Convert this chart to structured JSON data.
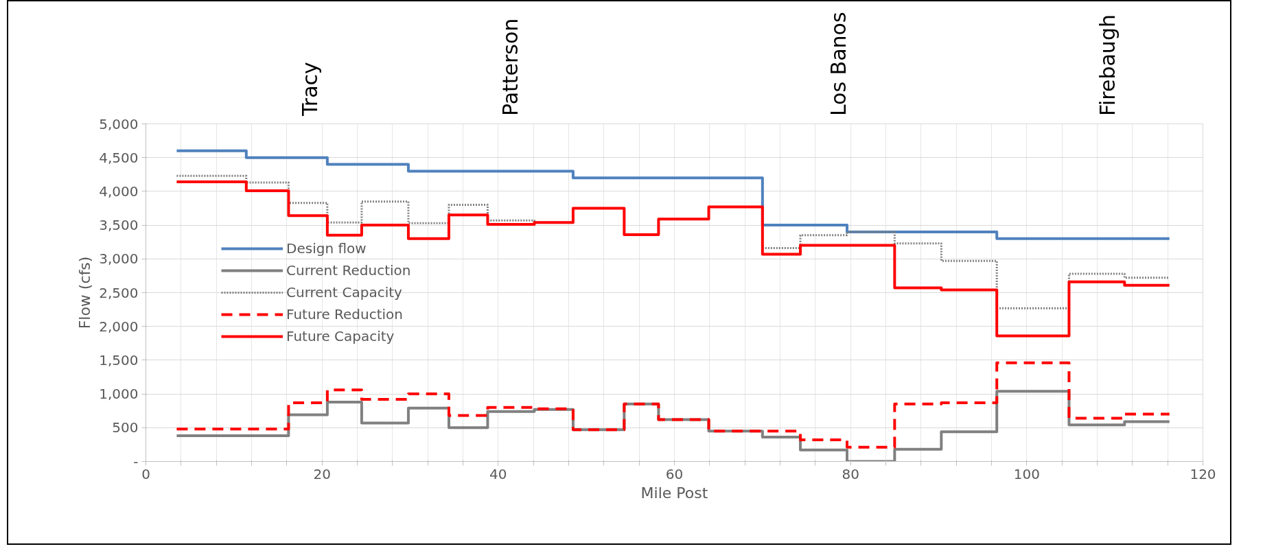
{
  "chart_data": {
    "type": "step",
    "xlabel": "Mile Post",
    "ylabel": "Flow (cfs)",
    "x": [
      3.5,
      11.4,
      16.2,
      20.6,
      24.5,
      29.8,
      34.4,
      38.8,
      44.1,
      48.5,
      54.3,
      58.2,
      63.9,
      70.0,
      74.3,
      79.6,
      85.0,
      90.3,
      96.6,
      104.8,
      111.1,
      116.2
    ],
    "series": [
      {
        "name": "Design flow",
        "color": "#4f81bd",
        "line_style": "solid",
        "values": [
          4600,
          4500,
          4500,
          4400,
          4400,
          4300,
          4300,
          4300,
          4300,
          4200,
          4200,
          4200,
          4200,
          3500,
          3500,
          3400,
          3400,
          3400,
          3300,
          3300,
          3300,
          3300
        ]
      },
      {
        "name": "Current Reduction",
        "color": "#808080",
        "line_style": "solid",
        "values": [
          380,
          380,
          690,
          880,
          570,
          790,
          500,
          740,
          770,
          470,
          850,
          620,
          450,
          360,
          170,
          0,
          180,
          440,
          1040,
          540,
          590,
          590
        ]
      },
      {
        "name": "Current Capacity",
        "color": "#808080",
        "line_style": "dotted",
        "values": [
          4230,
          4130,
          3830,
          3540,
          3850,
          3530,
          3800,
          3570,
          3540,
          null,
          null,
          null,
          null,
          3160,
          3350,
          3400,
          3230,
          2970,
          2270,
          2780,
          2720,
          2720
        ]
      },
      {
        "name": "Future Reduction",
        "color": "#ff0000",
        "line_style": "dashed",
        "values": [
          480,
          480,
          870,
          1060,
          920,
          1000,
          680,
          800,
          780,
          470,
          850,
          620,
          450,
          450,
          320,
          210,
          850,
          870,
          1460,
          640,
          700,
          700
        ]
      },
      {
        "name": "Future Capacity",
        "color": "#ff0000",
        "line_style": "solid",
        "values": [
          4140,
          4010,
          3640,
          3350,
          3500,
          3300,
          3650,
          3510,
          3540,
          3750,
          3360,
          3590,
          3770,
          3070,
          3200,
          3200,
          2570,
          2540,
          1860,
          2660,
          2610,
          2610
        ]
      }
    ],
    "xlim": [
      0,
      120
    ],
    "xticks": [
      0,
      {
        "value": 4,
        "label": null
      },
      {
        "value": 8,
        "label": null
      },
      {
        "value": 12,
        "label": null
      },
      {
        "value": 16,
        "label": null
      },
      20,
      {
        "value": 24,
        "label": null
      },
      {
        "value": 28,
        "label": null
      },
      {
        "value": 32,
        "label": null
      },
      {
        "value": 36,
        "label": null
      },
      40,
      {
        "value": 44,
        "label": null
      },
      {
        "value": 48,
        "label": null
      },
      {
        "value": 52,
        "label": null
      },
      {
        "value": 56,
        "label": null
      },
      60,
      {
        "value": 64,
        "label": null
      },
      {
        "value": 68,
        "label": null
      },
      {
        "value": 72,
        "label": null
      },
      {
        "value": 76,
        "label": null
      },
      80,
      {
        "value": 84,
        "label": null
      },
      {
        "value": 88,
        "label": null
      },
      {
        "value": 92,
        "label": null
      },
      {
        "value": 96,
        "label": null
      },
      100,
      {
        "value": 104,
        "label": null
      },
      {
        "value": 108,
        "label": null
      },
      {
        "value": 112,
        "label": null
      },
      {
        "value": 116,
        "label": null
      },
      120
    ],
    "ylim": [
      0,
      5000
    ],
    "yticks": [
      {
        "value": 0,
        "label": "-"
      },
      500,
      {
        "value": 1000,
        "label": "1,000"
      },
      {
        "value": 1500,
        "label": "1,500"
      },
      {
        "value": 2000,
        "label": "2,000"
      },
      {
        "value": 2500,
        "label": "2,500"
      },
      {
        "value": 3000,
        "label": "3,000"
      },
      {
        "value": 3500,
        "label": "3,500"
      },
      {
        "value": 4000,
        "label": "4,000"
      },
      {
        "value": 4500,
        "label": "4,500"
      },
      {
        "value": 5000,
        "label": "5,000"
      }
    ],
    "grid": true,
    "legend": "left",
    "marker": "none",
    "annotations": [
      "Tracy",
      "Patterson",
      "Los Banos",
      "Firebaugh"
    ]
  }
}
